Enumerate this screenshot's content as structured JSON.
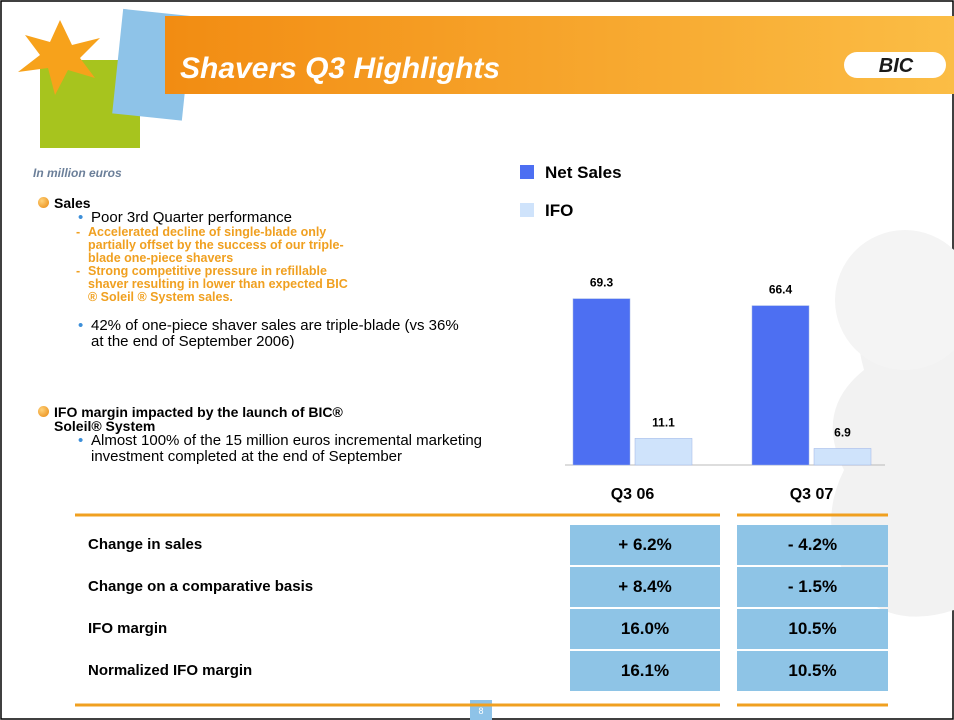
{
  "header": {
    "title": "Shavers Q3 Highlights",
    "logo": "BIC"
  },
  "units_note": "In million euros",
  "sections": [
    {
      "heading": "Sales",
      "items": [
        {
          "text": "Poor 3rd Quarter performance",
          "sub": [
            "Accelerated decline of single-blade only partially offset by the success of our triple-blade one-piece shavers",
            "Strong competitive pressure in refillable shaver resulting in lower than expected BIC ® Soleil ® System sales."
          ]
        },
        {
          "text": "42% of one-piece shaver sales are triple-blade (vs 36% at the end of September 2006)"
        }
      ]
    },
    {
      "heading": "IFO margin impacted by the launch of BIC® Soleil® System",
      "items": [
        {
          "text": "Almost 100% of the 15 million euros incremental marketing investment completed at the end of September"
        }
      ]
    }
  ],
  "chart_data": {
    "type": "bar",
    "categories": [
      "Q3 06",
      "Q3 07"
    ],
    "series": [
      {
        "name": "Net Sales",
        "color": "#4d6ff2",
        "values": [
          69.3,
          66.4
        ]
      },
      {
        "name": "IFO",
        "color": "#cfe3fb",
        "values": [
          11.1,
          6.9
        ]
      }
    ]
  },
  "table": {
    "rows": [
      [
        "Change in sales",
        "+ 6.2%",
        "- 4.2%"
      ],
      [
        "Change on a comparative basis",
        "+ 8.4%",
        "- 1.5%"
      ],
      [
        "IFO margin",
        "16.0%",
        "10.5%"
      ],
      [
        "Normalized IFO margin",
        "16.1%",
        "10.5%"
      ]
    ]
  },
  "page_number": "8"
}
